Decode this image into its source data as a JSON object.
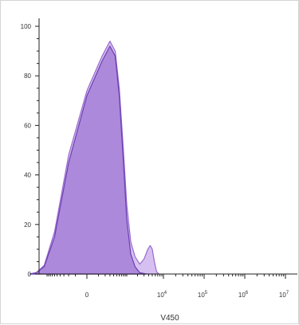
{
  "chart_data": {
    "type": "area",
    "title": "",
    "xlabel": "V450",
    "ylabel": "",
    "x_scale": "biexponential",
    "ylim": [
      0,
      100
    ],
    "grid": false,
    "y_ticks": [
      {
        "value": 100,
        "label": "100"
      },
      {
        "value": 80,
        "label": "80"
      },
      {
        "value": 60,
        "label": "60"
      },
      {
        "value": 40,
        "label": "40"
      },
      {
        "value": 20,
        "label": "20"
      },
      {
        "value": 0,
        "label": "0"
      }
    ],
    "x_ticks": [
      {
        "value": 0,
        "base": "0",
        "exp": ""
      },
      {
        "value": 10000,
        "base": "10",
        "exp": "4"
      },
      {
        "value": 100000,
        "base": "10",
        "exp": "5"
      },
      {
        "value": 1000000,
        "base": "10",
        "exp": "6"
      },
      {
        "value": 10000000,
        "base": "10",
        "exp": "7"
      }
    ],
    "series": [
      {
        "color": "#6a3fb0",
        "fill": "#a47fd6",
        "points": [
          [
            -3000,
            0
          ],
          [
            -2000,
            0.5
          ],
          [
            -1200,
            3
          ],
          [
            -600,
            15
          ],
          [
            -200,
            45
          ],
          [
            0,
            72
          ],
          [
            150,
            86
          ],
          [
            300,
            92
          ],
          [
            450,
            88
          ],
          [
            600,
            72
          ],
          [
            800,
            45
          ],
          [
            1000,
            22
          ],
          [
            1300,
            8
          ],
          [
            1700,
            3
          ],
          [
            2300,
            0.5
          ],
          [
            3500,
            0
          ]
        ]
      },
      {
        "color": "#9a6ad0",
        "fill": "#d2b9ef",
        "points": [
          [
            -3000,
            0
          ],
          [
            -2000,
            0.5
          ],
          [
            -1200,
            3.5
          ],
          [
            -600,
            17
          ],
          [
            -200,
            48
          ],
          [
            0,
            74
          ],
          [
            150,
            88
          ],
          [
            300,
            94
          ],
          [
            450,
            90
          ],
          [
            600,
            75
          ],
          [
            800,
            50
          ],
          [
            1000,
            28
          ],
          [
            1300,
            13
          ],
          [
            1700,
            7
          ],
          [
            2300,
            4
          ],
          [
            3000,
            6
          ],
          [
            3800,
            10
          ],
          [
            4400,
            11.5
          ],
          [
            5000,
            10
          ],
          [
            5700,
            5
          ],
          [
            6500,
            1
          ],
          [
            7500,
            0
          ]
        ]
      }
    ]
  }
}
